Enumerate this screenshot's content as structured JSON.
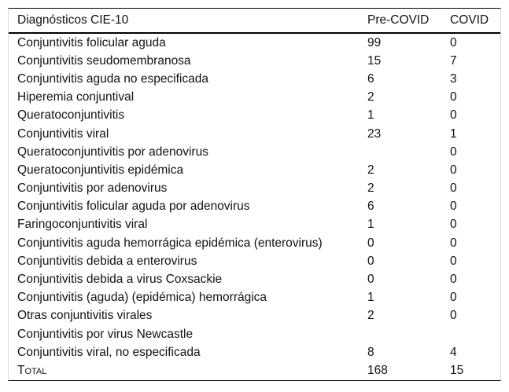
{
  "table": {
    "columns": [
      "Diagnósticos CIE-10",
      "Pre-COVID",
      "COVID"
    ],
    "rows": [
      {
        "label": "Conjuntivitis folicular aguda",
        "pre_covid": "99",
        "covid": "0"
      },
      {
        "label": "Conjuntivitis seudomembranosa",
        "pre_covid": "15",
        "covid": "7"
      },
      {
        "label": "Conjuntivitis aguda no especificada",
        "pre_covid": "6",
        "covid": "3"
      },
      {
        "label": "Hiperemia conjuntival",
        "pre_covid": "2",
        "covid": "0"
      },
      {
        "label": "Queratoconjuntivitis",
        "pre_covid": "1",
        "covid": "0"
      },
      {
        "label": "Conjuntivitis viral",
        "pre_covid": "23",
        "covid": "1"
      },
      {
        "label": "Queratoconjuntivitis por adenovirus",
        "pre_covid": "",
        "covid": "0"
      },
      {
        "label": "Queratoconjuntivitis epidémica",
        "pre_covid": "2",
        "covid": "0"
      },
      {
        "label": "Conjuntivitis por adenovirus",
        "pre_covid": "2",
        "covid": "0"
      },
      {
        "label": "Conjuntivitis folicular aguda por adenovirus",
        "pre_covid": "6",
        "covid": "0"
      },
      {
        "label": "Faringoconjuntivitis viral",
        "pre_covid": "1",
        "covid": "0"
      },
      {
        "label": "Conjuntivitis aguda hemorrágica epidémica (enterovirus)",
        "pre_covid": "0",
        "covid": "0"
      },
      {
        "label": "Conjuntivitis debida a enterovirus",
        "pre_covid": "0",
        "covid": "0"
      },
      {
        "label": "Conjuntivitis debida a virus Coxsackie",
        "pre_covid": "0",
        "covid": "0"
      },
      {
        "label": "Conjuntivitis (aguda) (epidémica) hemorrágica",
        "pre_covid": "1",
        "covid": "0"
      },
      {
        "label": "Otras conjuntivitis virales",
        "pre_covid": "2",
        "covid": "0"
      },
      {
        "label": "Conjuntivitis por virus Newcastle",
        "pre_covid": "",
        "covid": ""
      },
      {
        "label": "Conjuntivitis viral, no especificada",
        "pre_covid": "8",
        "covid": "4"
      },
      {
        "label": "Total",
        "pre_covid": "168",
        "covid": "15",
        "is_total": true
      }
    ],
    "colors": {
      "rule": "#000000",
      "side_border": "#d8d8d8",
      "text": "#121212",
      "background": "#ffffff"
    }
  }
}
